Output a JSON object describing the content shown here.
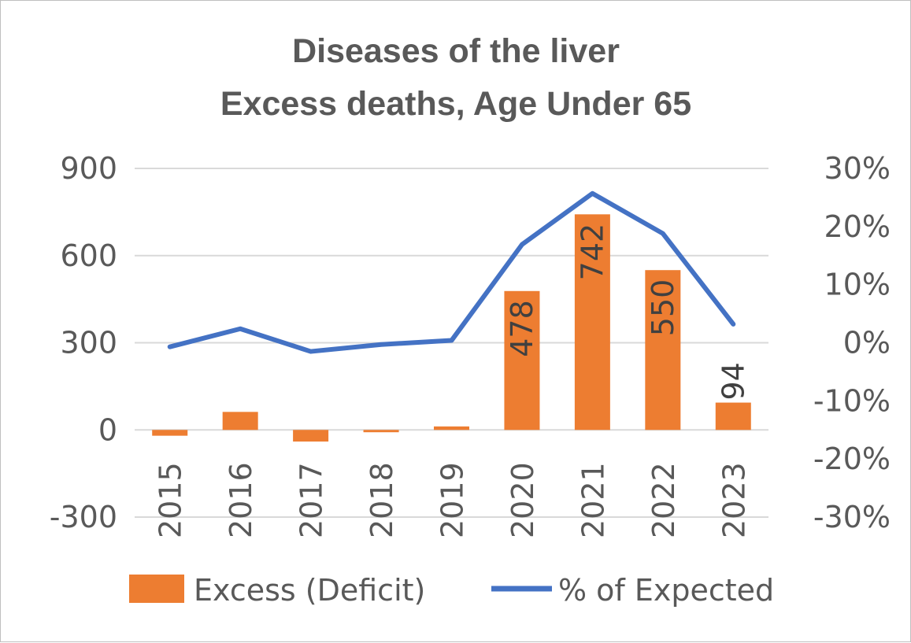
{
  "chart_data": {
    "type": "bar",
    "title": [
      "Diseases of the liver",
      "Excess deaths, Age Under 65"
    ],
    "categories": [
      "2015",
      "2016",
      "2017",
      "2018",
      "2019",
      "2020",
      "2021",
      "2022",
      "2023"
    ],
    "series": [
      {
        "name": "Excess (Deficit)",
        "type": "bar",
        "axis": "left",
        "color": "#ed7d31",
        "values": [
          -20,
          62,
          -40,
          -8,
          12,
          478,
          742,
          550,
          94
        ],
        "data_labels": [
          null,
          null,
          null,
          null,
          null,
          "478",
          "742",
          "550",
          "94"
        ]
      },
      {
        "name": "% of Expected",
        "type": "line",
        "axis": "right",
        "color": "#4472c4",
        "values": [
          -0.7,
          2.4,
          -1.5,
          -0.3,
          0.4,
          16.9,
          25.7,
          18.8,
          3.2
        ]
      }
    ],
    "left_axis": {
      "min": -300,
      "max": 900,
      "step": 300,
      "ticks": [
        "-300",
        "0",
        "300",
        "600",
        "900"
      ]
    },
    "right_axis": {
      "min": -30,
      "max": 30,
      "step": 10,
      "ticks": [
        "-30%",
        "-20%",
        "-10%",
        "0%",
        "10%",
        "20%",
        "30%"
      ]
    },
    "gridlines": true,
    "legend_position": "bottom"
  }
}
